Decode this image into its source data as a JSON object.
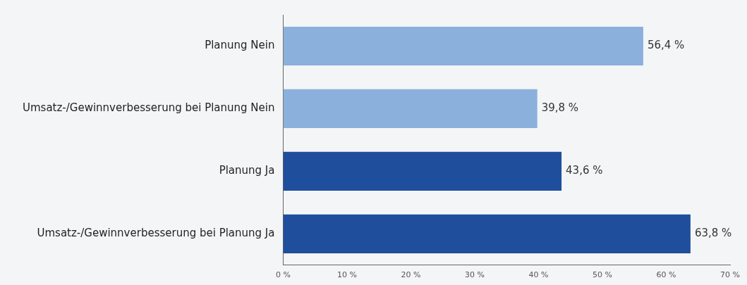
{
  "chart_data": {
    "type": "bar",
    "orientation": "horizontal",
    "categories": [
      "Planung Nein",
      "Umsatz-/Gewinnverbesserung bei Planung Nein",
      "Planung Ja",
      "Umsatz-/Gewinnverbesserung bei Planung Ja"
    ],
    "values": [
      56.4,
      39.8,
      43.6,
      63.8
    ],
    "colors": [
      "#8cb0dc",
      "#8cb0dc",
      "#1f4e9c",
      "#1f4e9c"
    ],
    "value_labels": [
      "56,4 %",
      "39,8 %",
      "43,6 %",
      "63,8 %"
    ],
    "xlim": [
      0,
      70
    ],
    "xticks": [
      {
        "value": 0,
        "label": "0 %"
      },
      {
        "value": 10,
        "label": "10 %"
      },
      {
        "value": 20,
        "label": "20 %"
      },
      {
        "value": 30,
        "label": "30 %"
      },
      {
        "value": 40,
        "label": "40 %"
      },
      {
        "value": 50,
        "label": "50 %"
      },
      {
        "value": 60,
        "label": "60 %"
      },
      {
        "value": 70,
        "label": "70 %"
      }
    ],
    "grid": false,
    "legend": false
  }
}
